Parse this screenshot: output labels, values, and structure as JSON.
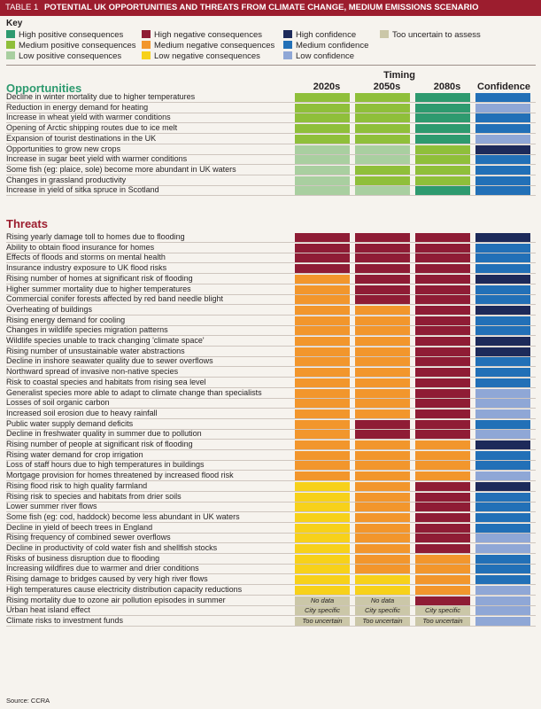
{
  "title": {
    "label": "TABLE 1",
    "text": "POTENTIAL UK OPPORTUNITIES AND THREATS FROM CLIMATE CHANGE, MEDIUM EMISSIONS SCENARIO"
  },
  "key": {
    "heading": "Key",
    "items": [
      {
        "label": "High positive consequences",
        "color": "#2e9a6f"
      },
      {
        "label": "Medium positive consequences",
        "color": "#8fbf3a"
      },
      {
        "label": "Low positive consequences",
        "color": "#a9cfa0"
      },
      {
        "label": "High negative consequences",
        "color": "#8f1c35"
      },
      {
        "label": "Medium negative consequences",
        "color": "#f2962c"
      },
      {
        "label": "Low negative consequences",
        "color": "#f7d11a"
      },
      {
        "label": "High confidence",
        "color": "#1d2a5a"
      },
      {
        "label": "Medium confidence",
        "color": "#2270b7"
      },
      {
        "label": "Low confidence",
        "color": "#8fa7d6"
      },
      {
        "label": "Too uncertain to assess",
        "color": "#cbc7a8"
      }
    ]
  },
  "columns": {
    "timing": "Timing",
    "c1": "2020s",
    "c2": "2050s",
    "c3": "2080s",
    "confidence": "Confidence"
  },
  "colors": {
    "HP": "#2e9a6f",
    "MP": "#8fbf3a",
    "LP": "#a9cfa0",
    "HN": "#8f1c35",
    "MN": "#f2962c",
    "LN": "#f7d11a",
    "HC": "#1d2a5a",
    "MC": "#2270b7",
    "LC": "#8fa7d6",
    "U": "#cbc7a8",
    "TXT": "#cbc7a8"
  },
  "opportunities": {
    "heading": "Opportunities",
    "rows": [
      {
        "label": "Decline in winter mortality due to higher temperatures",
        "c1": "MP",
        "c2": "MP",
        "c3": "HP",
        "conf": "MC"
      },
      {
        "label": "Reduction in energy demand for heating",
        "c1": "MP",
        "c2": "MP",
        "c3": "HP",
        "conf": "LC"
      },
      {
        "label": "Increase in wheat yield with warmer conditions",
        "c1": "MP",
        "c2": "MP",
        "c3": "HP",
        "conf": "MC"
      },
      {
        "label": "Opening of Arctic shipping routes due to ice melt",
        "c1": "MP",
        "c2": "MP",
        "c3": "HP",
        "conf": "MC"
      },
      {
        "label": "Expansion of tourist destinations in the UK",
        "c1": "MP",
        "c2": "MP",
        "c3": "HP",
        "conf": "LC"
      },
      {
        "label": "Opportunities to grow new crops",
        "c1": "LP",
        "c2": "LP",
        "c3": "MP",
        "conf": "HC"
      },
      {
        "label": "Increase in sugar beet yield with warmer conditions",
        "c1": "LP",
        "c2": "LP",
        "c3": "MP",
        "conf": "MC"
      },
      {
        "label": "Some fish (eg: plaice, sole) become more abundant in UK waters",
        "c1": "LP",
        "c2": "MP",
        "c3": "MP",
        "conf": "MC"
      },
      {
        "label": "Changes in grassland productivity",
        "c1": "LP",
        "c2": "MP",
        "c3": "MP",
        "conf": "MC"
      },
      {
        "label": "Increase in yield of sitka spruce in Scotland",
        "c1": "LP",
        "c2": "LP",
        "c3": "HP",
        "conf": "MC"
      }
    ]
  },
  "threats": {
    "heading": "Threats",
    "rows": [
      {
        "label": "Rising yearly damage toll to homes due to flooding",
        "c1": "HN",
        "c2": "HN",
        "c3": "HN",
        "conf": "HC"
      },
      {
        "label": "Ability to obtain flood insurance for homes",
        "c1": "HN",
        "c2": "HN",
        "c3": "HN",
        "conf": "MC"
      },
      {
        "label": "Effects of floods and storms on mental health",
        "c1": "HN",
        "c2": "HN",
        "c3": "HN",
        "conf": "MC"
      },
      {
        "label": "Insurance industry exposure to UK flood risks",
        "c1": "HN",
        "c2": "HN",
        "c3": "HN",
        "conf": "MC"
      },
      {
        "label": "Rising number of homes at significant risk of flooding",
        "c1": "MN",
        "c2": "HN",
        "c3": "HN",
        "conf": "HC"
      },
      {
        "label": "Higher summer mortality due to higher temperatures",
        "c1": "MN",
        "c2": "HN",
        "c3": "HN",
        "conf": "MC"
      },
      {
        "label": "Commercial conifer forests affected by red band needle blight",
        "c1": "MN",
        "c2": "HN",
        "c3": "HN",
        "conf": "MC"
      },
      {
        "label": "Overheating of buildings",
        "c1": "MN",
        "c2": "MN",
        "c3": "HN",
        "conf": "HC"
      },
      {
        "label": "Rising energy demand for cooling",
        "c1": "MN",
        "c2": "MN",
        "c3": "HN",
        "conf": "MC"
      },
      {
        "label": "Changes in wildlife species migration patterns",
        "c1": "MN",
        "c2": "MN",
        "c3": "HN",
        "conf": "MC"
      },
      {
        "label": "Wildlife species unable to track changing 'climate space'",
        "c1": "MN",
        "c2": "MN",
        "c3": "HN",
        "conf": "HC"
      },
      {
        "label": "Rising number of unsustainable water abstractions",
        "c1": "MN",
        "c2": "MN",
        "c3": "HN",
        "conf": "HC"
      },
      {
        "label": "Decline in inshore seawater quality due to sewer overflows",
        "c1": "MN",
        "c2": "MN",
        "c3": "HN",
        "conf": "MC"
      },
      {
        "label": "Northward spread of invasive non-native species",
        "c1": "MN",
        "c2": "MN",
        "c3": "HN",
        "conf": "MC"
      },
      {
        "label": "Risk to coastal species and habitats from rising sea level",
        "c1": "MN",
        "c2": "MN",
        "c3": "HN",
        "conf": "MC"
      },
      {
        "label": "Generalist species more able to adapt to climate change than specialists",
        "c1": "MN",
        "c2": "MN",
        "c3": "HN",
        "conf": "LC"
      },
      {
        "label": "Losses of soil organic carbon",
        "c1": "MN",
        "c2": "MN",
        "c3": "HN",
        "conf": "LC"
      },
      {
        "label": "Increased soil erosion due to heavy rainfall",
        "c1": "MN",
        "c2": "MN",
        "c3": "HN",
        "conf": "LC"
      },
      {
        "label": "Public water supply demand deficits",
        "c1": "MN",
        "c2": "HN",
        "c3": "HN",
        "conf": "MC"
      },
      {
        "label": "Decline in freshwater quality in summer due to pollution",
        "c1": "MN",
        "c2": "HN",
        "c3": "HN",
        "conf": "LC"
      },
      {
        "label": "Rising number of people at significant risk of flooding",
        "c1": "MN",
        "c2": "MN",
        "c3": "MN",
        "conf": "HC"
      },
      {
        "label": "Rising water demand for crop irrigation",
        "c1": "MN",
        "c2": "MN",
        "c3": "MN",
        "conf": "MC"
      },
      {
        "label": "Loss of staff hours due to high temperatures in buildings",
        "c1": "MN",
        "c2": "MN",
        "c3": "MN",
        "conf": "MC"
      },
      {
        "label": "Mortgage provision for homes threatened by increased flood risk",
        "c1": "MN",
        "c2": "MN",
        "c3": "MN",
        "conf": "LC"
      },
      {
        "label": "Rising flood risk to high quality farmland",
        "c1": "LN",
        "c2": "MN",
        "c3": "HN",
        "conf": "HC"
      },
      {
        "label": "Rising risk to species and habitats from drier soils",
        "c1": "LN",
        "c2": "MN",
        "c3": "HN",
        "conf": "MC"
      },
      {
        "label": "Lower summer river flows",
        "c1": "LN",
        "c2": "MN",
        "c3": "HN",
        "conf": "MC"
      },
      {
        "label": "Some fish (eg: cod, haddock) become less abundant in UK waters",
        "c1": "LN",
        "c2": "MN",
        "c3": "HN",
        "conf": "MC"
      },
      {
        "label": "Decline in yield of beech trees in England",
        "c1": "LN",
        "c2": "MN",
        "c3": "HN",
        "conf": "MC"
      },
      {
        "label": "Rising frequency of combined sewer overflows",
        "c1": "LN",
        "c2": "MN",
        "c3": "HN",
        "conf": "LC"
      },
      {
        "label": "Decline in productivity of cold water fish and shellfish stocks",
        "c1": "LN",
        "c2": "MN",
        "c3": "HN",
        "conf": "LC"
      },
      {
        "label": "Risks of business disruption due to flooding",
        "c1": "LN",
        "c2": "MN",
        "c3": "MN",
        "conf": "MC"
      },
      {
        "label": "Increasing wildfires due to warmer and drier conditions",
        "c1": "LN",
        "c2": "MN",
        "c3": "MN",
        "conf": "MC"
      },
      {
        "label": "Rising damage to bridges caused by very high river flows",
        "c1": "LN",
        "c2": "LN",
        "c3": "MN",
        "conf": "MC"
      },
      {
        "label": "High temperatures cause electricity distribution capacity reductions",
        "c1": "LN",
        "c2": "LN",
        "c3": "MN",
        "conf": "LC"
      },
      {
        "label": "Rising mortality due to ozone air pollution episodes in summer",
        "c1": "TXT",
        "c2": "TXT",
        "c3": "HN",
        "conf": "LC",
        "t1": "No data",
        "t2": "No data"
      },
      {
        "label": "Urban heat island effect",
        "c1": "TXT",
        "c2": "TXT",
        "c3": "TXT",
        "conf": "LC",
        "t1": "City specific",
        "t2": "City specific",
        "t3": "City specific"
      },
      {
        "label": "Climate risks to investment funds",
        "c1": "TXT",
        "c2": "TXT",
        "c3": "TXT",
        "conf": "LC",
        "t1": "Too uncertain",
        "t2": "Too uncertain",
        "t3": "Too uncertain"
      }
    ]
  },
  "source": "Source: CCRA"
}
